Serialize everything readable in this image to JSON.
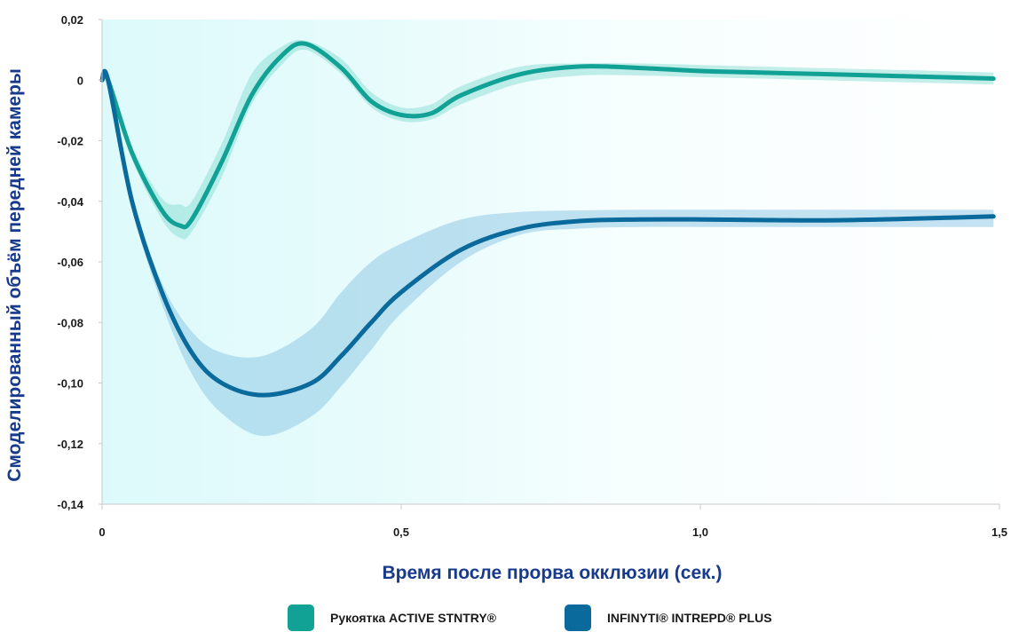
{
  "chart_data": {
    "type": "line",
    "xlabel": "Время после прорва окклюзии (сек.)",
    "ylabel": "Смоделированный объём передней камеры",
    "xlim": [
      0,
      1.5
    ],
    "ylim": [
      -0.14,
      0.02
    ],
    "x_ticks": [
      0,
      0.5,
      1.0,
      1.5
    ],
    "x_tick_labels": [
      "0",
      "0,5",
      "1,0",
      "1,5"
    ],
    "y_ticks": [
      0.02,
      0,
      -0.02,
      -0.04,
      -0.06,
      -0.08,
      -0.1,
      -0.12,
      -0.14
    ],
    "y_tick_labels": [
      "0,02",
      "0",
      "-0,02",
      "-0,04",
      "-0,06",
      "-0,08",
      "-0,10",
      "-0,12",
      "-0,14"
    ],
    "grid": false,
    "legend_position": "bottom",
    "series": [
      {
        "name": "Рукоятка ACTIVE STNTRY®",
        "color": "#12a295",
        "band_color": "#7fd9cf",
        "x": [
          0.0,
          0.01,
          0.05,
          0.1,
          0.13,
          0.15,
          0.2,
          0.25,
          0.3,
          0.34,
          0.4,
          0.45,
          0.5,
          0.55,
          0.6,
          0.7,
          0.8,
          0.9,
          1.0,
          1.1,
          1.2,
          1.3,
          1.4,
          1.49
        ],
        "y": [
          0.0,
          0.0,
          -0.024,
          -0.043,
          -0.048,
          -0.046,
          -0.027,
          -0.005,
          0.008,
          0.012,
          0.004,
          -0.007,
          -0.0115,
          -0.011,
          -0.005,
          0.002,
          0.0045,
          0.004,
          0.003,
          0.0025,
          0.002,
          0.0015,
          0.001,
          0.0005
        ],
        "lower": [
          0.0,
          0.0,
          -0.026,
          -0.046,
          -0.052,
          -0.05,
          -0.032,
          -0.008,
          0.005,
          0.01,
          0.002,
          -0.009,
          -0.0135,
          -0.013,
          -0.008,
          -0.001,
          0.0015,
          0.0015,
          0.001,
          0.0005,
          0.0,
          -0.0005,
          -0.001,
          -0.0015
        ],
        "upper": [
          0.0,
          0.0,
          -0.022,
          -0.039,
          -0.041,
          -0.04,
          -0.021,
          0.002,
          0.011,
          0.013,
          0.007,
          -0.004,
          -0.009,
          -0.008,
          -0.002,
          0.0045,
          0.0055,
          0.0055,
          0.005,
          0.0045,
          0.004,
          0.0035,
          0.003,
          0.0025
        ]
      },
      {
        "name": "INFINYTI® INTREPD® PLUS",
        "color": "#0a6a9c",
        "band_color": "#7fbfe0",
        "x": [
          0.0,
          0.01,
          0.05,
          0.1,
          0.15,
          0.2,
          0.27,
          0.35,
          0.4,
          0.45,
          0.5,
          0.6,
          0.7,
          0.8,
          0.9,
          1.0,
          1.1,
          1.2,
          1.3,
          1.4,
          1.49
        ],
        "y": [
          0.0,
          0.0,
          -0.04,
          -0.07,
          -0.09,
          -0.1,
          -0.104,
          -0.1,
          -0.091,
          -0.08,
          -0.07,
          -0.056,
          -0.049,
          -0.0465,
          -0.046,
          -0.046,
          -0.0462,
          -0.0463,
          -0.046,
          -0.0455,
          -0.045
        ],
        "lower": [
          0.0,
          0.0,
          -0.042,
          -0.074,
          -0.097,
          -0.11,
          -0.1175,
          -0.111,
          -0.101,
          -0.089,
          -0.077,
          -0.06,
          -0.051,
          -0.049,
          -0.0485,
          -0.0485,
          -0.0485,
          -0.0485,
          -0.0485,
          -0.0485,
          -0.0485
        ],
        "upper": [
          0.0,
          0.0,
          -0.038,
          -0.067,
          -0.083,
          -0.09,
          -0.091,
          -0.082,
          -0.07,
          -0.06,
          -0.054,
          -0.046,
          -0.0435,
          -0.043,
          -0.0428,
          -0.0428,
          -0.0428,
          -0.0428,
          -0.0428,
          -0.0428,
          -0.0428
        ]
      }
    ]
  }
}
